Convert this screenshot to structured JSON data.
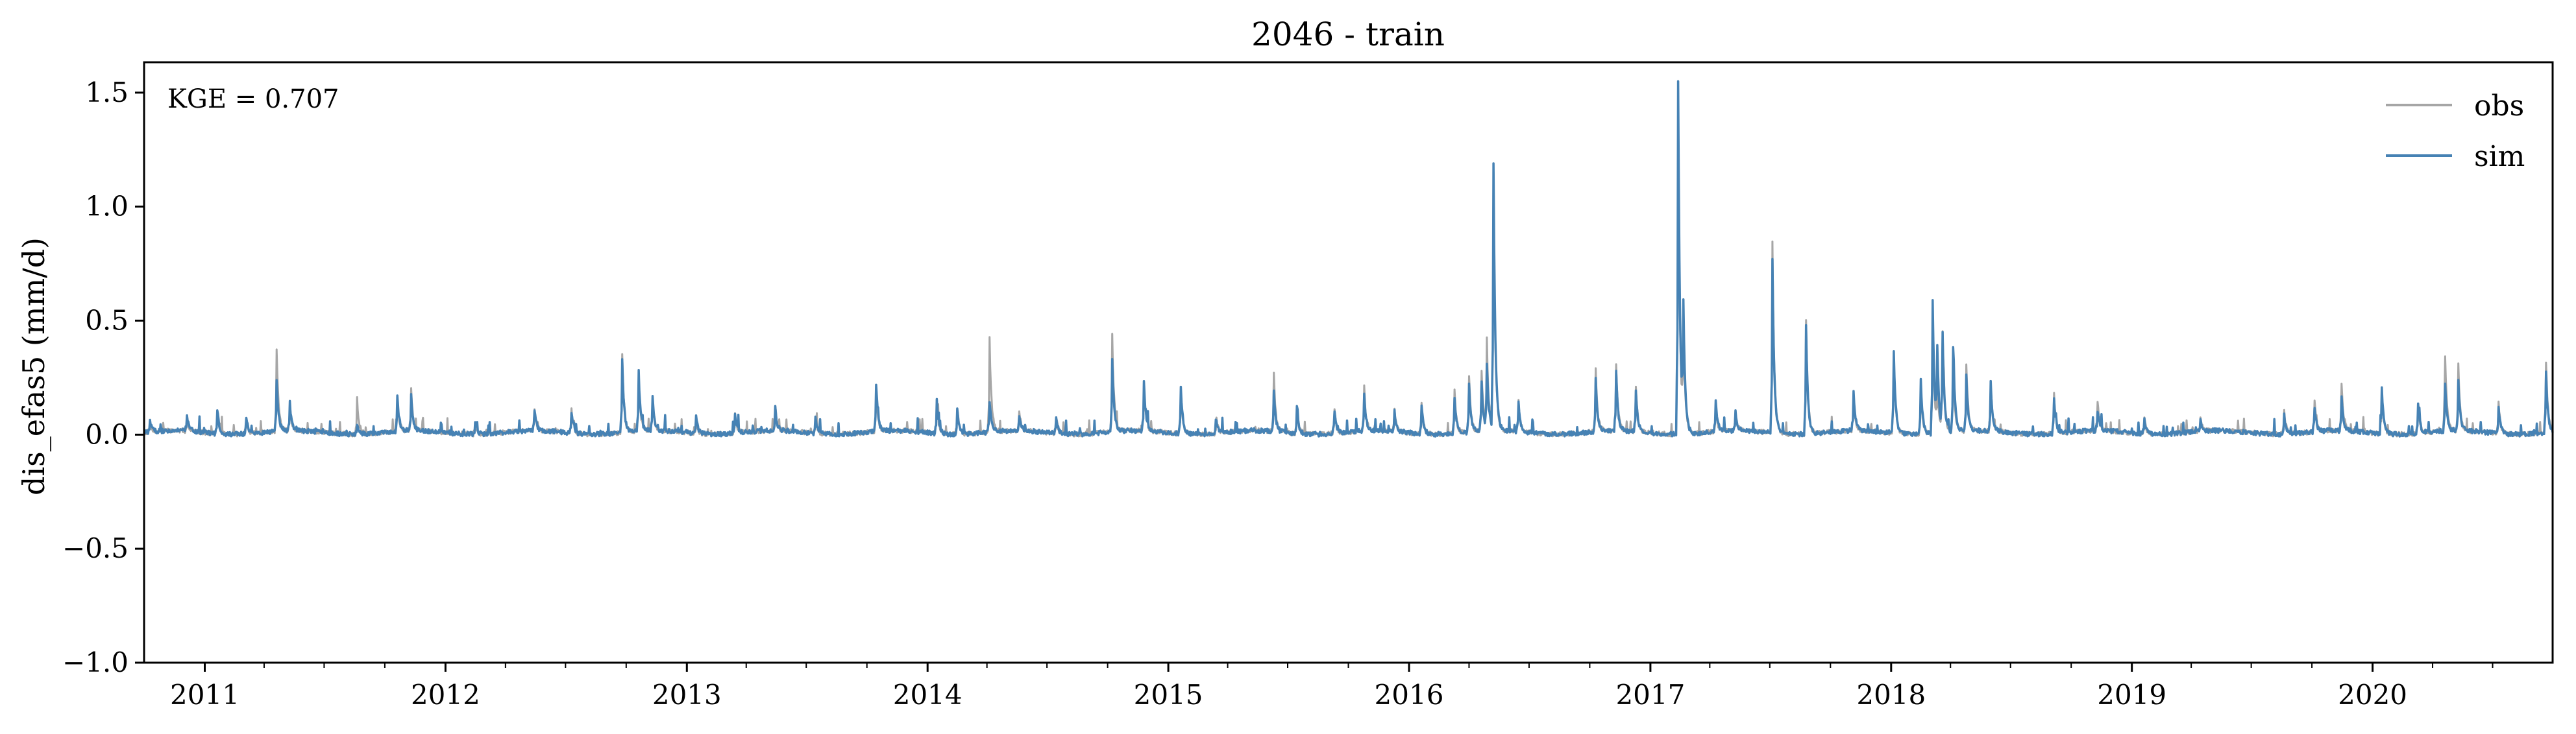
{
  "chart_data": {
    "type": "line",
    "title": "2046 - train",
    "xlabel": "",
    "ylabel": "dis_efas5 (mm/d)",
    "ylim": [
      -1.0,
      1.6333
    ],
    "xlim": [
      "2010-10-01",
      "2020-09-30"
    ],
    "annotation": "KGE = 0.707",
    "grid": false,
    "legend_position": "top-right",
    "x_ticks": [
      "2011",
      "2012",
      "2013",
      "2014",
      "2015",
      "2016",
      "2017",
      "2018",
      "2019",
      "2020"
    ],
    "x_tick_dates": [
      "2011-01-01",
      "2012-01-01",
      "2013-01-01",
      "2014-01-01",
      "2015-01-01",
      "2016-01-01",
      "2017-01-01",
      "2018-01-01",
      "2019-01-01",
      "2020-01-01"
    ],
    "y_ticks": [
      -1.0,
      -0.5,
      0.0,
      0.5,
      1.0,
      1.5
    ],
    "y_tick_labels": [
      "−1.0",
      "−0.5",
      "0.0",
      "0.5",
      "1.0",
      "1.5"
    ],
    "baseline": 0.01,
    "series": [
      {
        "name": "obs",
        "color": "#a6a6a6",
        "peaks": [
          [
            "2010-10-10",
            0.05
          ],
          [
            "2010-12-05",
            0.07
          ],
          [
            "2011-01-20",
            0.09
          ],
          [
            "2011-03-05",
            0.08
          ],
          [
            "2011-04-20",
            0.37
          ],
          [
            "2011-05-10",
            0.12
          ],
          [
            "2011-08-20",
            0.17
          ],
          [
            "2011-10-20",
            0.15
          ],
          [
            "2011-11-10",
            0.19
          ],
          [
            "2012-02-15",
            0.05
          ],
          [
            "2012-05-15",
            0.1
          ],
          [
            "2012-07-10",
            0.11
          ],
          [
            "2012-09-25",
            0.35
          ],
          [
            "2012-10-20",
            0.24
          ],
          [
            "2012-11-10",
            0.15
          ],
          [
            "2013-01-15",
            0.06
          ],
          [
            "2013-03-15",
            0.1
          ],
          [
            "2013-05-15",
            0.12
          ],
          [
            "2013-07-15",
            0.07
          ],
          [
            "2013-10-15",
            0.2
          ],
          [
            "2014-01-15",
            0.15
          ],
          [
            "2014-02-15",
            0.13
          ],
          [
            "2014-04-05",
            0.43
          ],
          [
            "2014-05-20",
            0.1
          ],
          [
            "2014-07-15",
            0.08
          ],
          [
            "2014-10-08",
            0.43
          ],
          [
            "2014-11-25",
            0.22
          ],
          [
            "2015-01-20",
            0.2
          ],
          [
            "2015-03-15",
            0.07
          ],
          [
            "2015-06-10",
            0.26
          ],
          [
            "2015-07-15",
            0.12
          ],
          [
            "2015-09-10",
            0.11
          ],
          [
            "2015-10-25",
            0.2
          ],
          [
            "2015-12-10",
            0.1
          ],
          [
            "2016-01-20",
            0.14
          ],
          [
            "2016-03-10",
            0.2
          ],
          [
            "2016-04-01",
            0.26
          ],
          [
            "2016-04-20",
            0.28
          ],
          [
            "2016-04-28",
            0.4
          ],
          [
            "2016-05-08",
            1.12
          ],
          [
            "2016-06-15",
            0.15
          ],
          [
            "2016-10-10",
            0.28
          ],
          [
            "2016-11-10",
            0.3
          ],
          [
            "2016-12-10",
            0.2
          ],
          [
            "2017-02-12",
            1.35
          ],
          [
            "2017-02-20",
            0.45
          ],
          [
            "2017-04-10",
            0.12
          ],
          [
            "2017-05-10",
            0.1
          ],
          [
            "2017-07-05",
            0.84
          ],
          [
            "2017-08-25",
            0.51
          ],
          [
            "2017-11-05",
            0.17
          ],
          [
            "2018-01-05",
            0.35
          ],
          [
            "2018-02-15",
            0.22
          ],
          [
            "2018-03-05",
            0.46
          ],
          [
            "2018-03-12",
            0.2
          ],
          [
            "2018-03-20",
            0.45
          ],
          [
            "2018-04-05",
            0.3
          ],
          [
            "2018-04-25",
            0.3
          ],
          [
            "2018-06-01",
            0.21
          ],
          [
            "2018-09-05",
            0.19
          ],
          [
            "2018-11-10",
            0.14
          ],
          [
            "2019-01-20",
            0.08
          ],
          [
            "2019-04-15",
            0.07
          ],
          [
            "2019-08-20",
            0.11
          ],
          [
            "2019-10-05",
            0.15
          ],
          [
            "2019-11-15",
            0.22
          ],
          [
            "2020-01-15",
            0.2
          ],
          [
            "2020-03-10",
            0.13
          ],
          [
            "2020-04-20",
            0.33
          ],
          [
            "2020-05-10",
            0.3
          ],
          [
            "2020-07-10",
            0.15
          ],
          [
            "2020-09-20",
            0.32
          ]
        ]
      },
      {
        "name": "sim",
        "color": "#4682b4",
        "peaks": [
          [
            "2010-10-10",
            0.06
          ],
          [
            "2010-12-05",
            0.08
          ],
          [
            "2011-01-20",
            0.12
          ],
          [
            "2011-03-05",
            0.09
          ],
          [
            "2011-04-20",
            0.24
          ],
          [
            "2011-05-10",
            0.13
          ],
          [
            "2011-08-20",
            0.06
          ],
          [
            "2011-10-20",
            0.17
          ],
          [
            "2011-11-10",
            0.16
          ],
          [
            "2012-02-15",
            0.06
          ],
          [
            "2012-05-15",
            0.1
          ],
          [
            "2012-07-10",
            0.1
          ],
          [
            "2012-09-25",
            0.33
          ],
          [
            "2012-10-20",
            0.27
          ],
          [
            "2012-11-10",
            0.16
          ],
          [
            "2013-01-15",
            0.08
          ],
          [
            "2013-03-15",
            0.09
          ],
          [
            "2013-05-15",
            0.11
          ],
          [
            "2013-07-15",
            0.08
          ],
          [
            "2013-10-15",
            0.22
          ],
          [
            "2014-01-15",
            0.16
          ],
          [
            "2014-02-15",
            0.12
          ],
          [
            "2014-04-05",
            0.15
          ],
          [
            "2014-05-20",
            0.08
          ],
          [
            "2014-07-15",
            0.08
          ],
          [
            "2014-10-08",
            0.33
          ],
          [
            "2014-11-25",
            0.22
          ],
          [
            "2015-01-20",
            0.21
          ],
          [
            "2015-03-15",
            0.07
          ],
          [
            "2015-06-10",
            0.18
          ],
          [
            "2015-07-15",
            0.13
          ],
          [
            "2015-09-10",
            0.11
          ],
          [
            "2015-10-25",
            0.18
          ],
          [
            "2015-12-10",
            0.1
          ],
          [
            "2016-01-20",
            0.14
          ],
          [
            "2016-03-10",
            0.17
          ],
          [
            "2016-04-01",
            0.22
          ],
          [
            "2016-04-20",
            0.22
          ],
          [
            "2016-04-28",
            0.3
          ],
          [
            "2016-05-08",
            1.18
          ],
          [
            "2016-06-15",
            0.14
          ],
          [
            "2016-10-10",
            0.25
          ],
          [
            "2016-11-10",
            0.27
          ],
          [
            "2016-12-10",
            0.18
          ],
          [
            "2017-02-12",
            1.56
          ],
          [
            "2017-02-20",
            0.52
          ],
          [
            "2017-04-10",
            0.14
          ],
          [
            "2017-05-10",
            0.1
          ],
          [
            "2017-07-05",
            0.77
          ],
          [
            "2017-08-25",
            0.49
          ],
          [
            "2017-11-05",
            0.19
          ],
          [
            "2018-01-05",
            0.37
          ],
          [
            "2018-02-15",
            0.25
          ],
          [
            "2018-03-05",
            0.6
          ],
          [
            "2018-03-12",
            0.35
          ],
          [
            "2018-03-20",
            0.43
          ],
          [
            "2018-04-05",
            0.38
          ],
          [
            "2018-04-25",
            0.25
          ],
          [
            "2018-06-01",
            0.22
          ],
          [
            "2018-09-05",
            0.17
          ],
          [
            "2018-11-10",
            0.1
          ],
          [
            "2019-01-20",
            0.08
          ],
          [
            "2019-04-15",
            0.06
          ],
          [
            "2019-08-20",
            0.09
          ],
          [
            "2019-10-05",
            0.12
          ],
          [
            "2019-11-15",
            0.16
          ],
          [
            "2020-01-15",
            0.21
          ],
          [
            "2020-03-10",
            0.14
          ],
          [
            "2020-04-20",
            0.21
          ],
          [
            "2020-05-10",
            0.24
          ],
          [
            "2020-07-10",
            0.13
          ],
          [
            "2020-09-20",
            0.27
          ]
        ]
      }
    ]
  }
}
